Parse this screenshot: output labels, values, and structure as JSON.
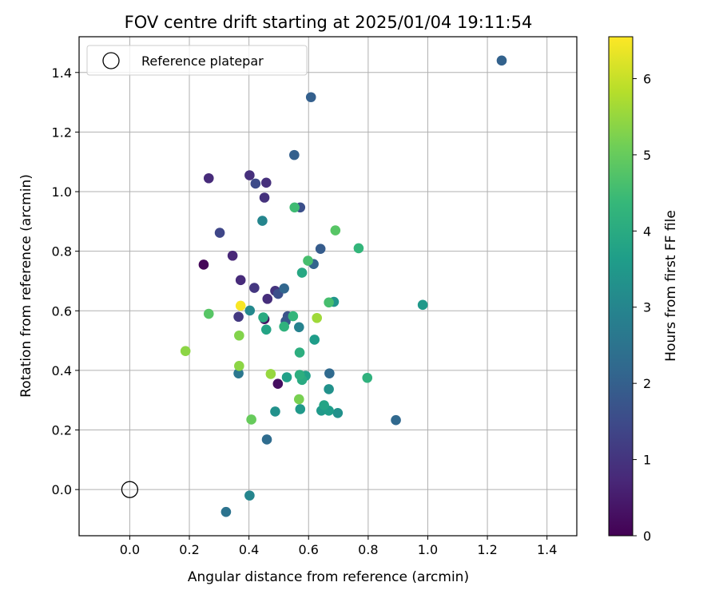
{
  "chart_data": {
    "type": "scatter",
    "title": "FOV centre drift starting at 2025/01/04 19:11:54",
    "xlabel": "Angular distance from reference (arcmin)",
    "ylabel": "Rotation from reference (arcmin)",
    "xlim": [
      -0.17,
      1.5
    ],
    "ylim": [
      -0.155,
      1.52
    ],
    "xticks": [
      "0.0",
      "0.2",
      "0.4",
      "0.6",
      "0.8",
      "1.0",
      "1.2",
      "1.4"
    ],
    "yticks": [
      "0.0",
      "0.2",
      "0.4",
      "0.6",
      "0.8",
      "1.0",
      "1.2",
      "1.4"
    ],
    "grid": true,
    "legend": {
      "position": "top-left",
      "entries": [
        "Reference platepar"
      ]
    },
    "reference_point": {
      "x": 0.0,
      "y": 0.0
    },
    "colorbar": {
      "label": "Hours from first FF file",
      "range": [
        0,
        6.55
      ],
      "ticks": [
        "0",
        "1",
        "2",
        "3",
        "4",
        "5",
        "6"
      ],
      "colormap": [
        "#440154",
        "#482878",
        "#3e4989",
        "#31688e",
        "#26828e",
        "#1f9e89",
        "#35b779",
        "#6ece58",
        "#b5de2b",
        "#fde725"
      ]
    },
    "points": [
      {
        "x": 0.248,
        "y": 0.755,
        "h": 0.1
      },
      {
        "x": 0.497,
        "y": 0.355,
        "h": 0.25
      },
      {
        "x": 0.452,
        "y": 0.572,
        "h": 0.3
      },
      {
        "x": 0.345,
        "y": 0.785,
        "h": 0.7
      },
      {
        "x": 0.265,
        "y": 1.045,
        "h": 0.8
      },
      {
        "x": 0.372,
        "y": 0.703,
        "h": 0.8
      },
      {
        "x": 0.462,
        "y": 0.64,
        "h": 0.85
      },
      {
        "x": 0.402,
        "y": 1.055,
        "h": 0.9
      },
      {
        "x": 0.458,
        "y": 1.03,
        "h": 0.9
      },
      {
        "x": 0.452,
        "y": 0.98,
        "h": 0.95
      },
      {
        "x": 0.488,
        "y": 0.667,
        "h": 1.0
      },
      {
        "x": 0.418,
        "y": 0.677,
        "h": 1.05
      },
      {
        "x": 0.365,
        "y": 0.58,
        "h": 1.1
      },
      {
        "x": 0.302,
        "y": 0.862,
        "h": 1.4
      },
      {
        "x": 0.422,
        "y": 1.027,
        "h": 1.5
      },
      {
        "x": 0.572,
        "y": 0.947,
        "h": 1.6
      },
      {
        "x": 0.498,
        "y": 0.657,
        "h": 1.6
      },
      {
        "x": 0.53,
        "y": 0.582,
        "h": 1.7
      },
      {
        "x": 0.523,
        "y": 0.565,
        "h": 1.8
      },
      {
        "x": 0.64,
        "y": 0.808,
        "h": 1.9
      },
      {
        "x": 0.552,
        "y": 1.123,
        "h": 2.0
      },
      {
        "x": 0.608,
        "y": 1.317,
        "h": 2.0
      },
      {
        "x": 1.248,
        "y": 1.44,
        "h": 2.05
      },
      {
        "x": 0.617,
        "y": 0.757,
        "h": 2.1
      },
      {
        "x": 0.518,
        "y": 0.675,
        "h": 2.15
      },
      {
        "x": 0.893,
        "y": 0.233,
        "h": 2.2
      },
      {
        "x": 0.67,
        "y": 0.39,
        "h": 2.25
      },
      {
        "x": 0.46,
        "y": 0.168,
        "h": 2.3
      },
      {
        "x": 0.323,
        "y": -0.075,
        "h": 2.5
      },
      {
        "x": 0.365,
        "y": 0.39,
        "h": 2.6
      },
      {
        "x": 0.568,
        "y": 0.545,
        "h": 2.9
      },
      {
        "x": 0.445,
        "y": 0.902,
        "h": 3.0
      },
      {
        "x": 0.402,
        "y": -0.02,
        "h": 3.0
      },
      {
        "x": 0.403,
        "y": 0.601,
        "h": 3.1
      },
      {
        "x": 0.668,
        "y": 0.337,
        "h": 3.3
      },
      {
        "x": 0.488,
        "y": 0.262,
        "h": 3.3
      },
      {
        "x": 0.698,
        "y": 0.257,
        "h": 3.3
      },
      {
        "x": 0.685,
        "y": 0.63,
        "h": 3.4
      },
      {
        "x": 0.983,
        "y": 0.62,
        "h": 3.5
      },
      {
        "x": 0.572,
        "y": 0.27,
        "h": 3.5
      },
      {
        "x": 0.643,
        "y": 0.265,
        "h": 3.5
      },
      {
        "x": 0.62,
        "y": 0.503,
        "h": 3.6
      },
      {
        "x": 0.668,
        "y": 0.265,
        "h": 3.6
      },
      {
        "x": 0.527,
        "y": 0.377,
        "h": 3.7
      },
      {
        "x": 0.59,
        "y": 0.382,
        "h": 3.7
      },
      {
        "x": 0.652,
        "y": 0.283,
        "h": 3.8
      },
      {
        "x": 0.458,
        "y": 0.537,
        "h": 3.8
      },
      {
        "x": 0.578,
        "y": 0.728,
        "h": 3.9
      },
      {
        "x": 0.578,
        "y": 0.368,
        "h": 4.0
      },
      {
        "x": 0.448,
        "y": 0.578,
        "h": 4.0
      },
      {
        "x": 0.57,
        "y": 0.46,
        "h": 4.1
      },
      {
        "x": 0.57,
        "y": 0.385,
        "h": 4.1
      },
      {
        "x": 0.797,
        "y": 0.375,
        "h": 4.2
      },
      {
        "x": 0.518,
        "y": 0.547,
        "h": 4.2
      },
      {
        "x": 0.768,
        "y": 0.81,
        "h": 4.3
      },
      {
        "x": 0.548,
        "y": 0.582,
        "h": 4.3
      },
      {
        "x": 0.553,
        "y": 0.947,
        "h": 4.5
      },
      {
        "x": 0.598,
        "y": 0.768,
        "h": 4.6
      },
      {
        "x": 0.668,
        "y": 0.628,
        "h": 4.6
      },
      {
        "x": 0.69,
        "y": 0.87,
        "h": 4.8
      },
      {
        "x": 0.265,
        "y": 0.59,
        "h": 4.8
      },
      {
        "x": 0.408,
        "y": 0.235,
        "h": 5.0
      },
      {
        "x": 0.568,
        "y": 0.303,
        "h": 5.2
      },
      {
        "x": 0.367,
        "y": 0.517,
        "h": 5.3
      },
      {
        "x": 0.187,
        "y": 0.465,
        "h": 5.4
      },
      {
        "x": 0.367,
        "y": 0.415,
        "h": 5.4
      },
      {
        "x": 0.473,
        "y": 0.388,
        "h": 5.5
      },
      {
        "x": 0.628,
        "y": 0.576,
        "h": 5.6
      },
      {
        "x": 0.372,
        "y": 0.617,
        "h": 6.5
      }
    ]
  }
}
